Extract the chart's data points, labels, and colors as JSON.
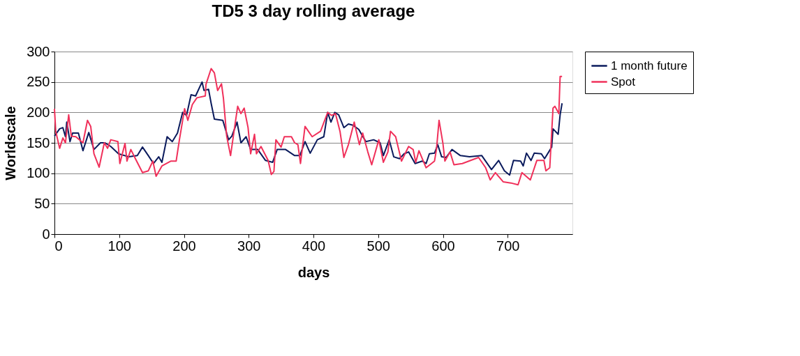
{
  "chart_data": {
    "type": "line",
    "title": "TD5 3 day rolling average",
    "xlabel": "days",
    "ylabel": "Worldscale",
    "xlim": [
      0,
      800
    ],
    "xticks": [
      0,
      100,
      200,
      300,
      400,
      500,
      600,
      700
    ],
    "ylim": [
      0,
      300
    ],
    "yticks": [
      0,
      50,
      100,
      150,
      200,
      250,
      300
    ],
    "grid": "y",
    "legend": "right",
    "marker": "none",
    "line_style": "solid",
    "series": [
      {
        "name": "1 month future",
        "color": "#0a1a5c",
        "x": [
          0,
          8,
          13,
          17,
          19,
          24,
          28,
          37,
          44,
          53,
          61,
          71,
          78,
          87,
          99,
          115,
          128,
          136,
          145,
          153,
          161,
          166,
          174,
          182,
          190,
          198,
          204,
          211,
          218,
          228,
          231,
          238,
          242,
          247,
          260,
          269,
          274,
          282,
          288,
          296,
          303,
          314,
          326,
          337,
          344,
          357,
          371,
          379,
          387,
          395,
          406,
          416,
          422,
          427,
          433,
          439,
          447,
          454,
          461,
          470,
          476,
          481,
          493,
          503,
          508,
          517,
          524,
          533,
          540,
          547,
          557,
          568,
          574,
          579,
          587,
          592,
          598,
          605,
          614,
          627,
          641,
          660,
          675,
          686,
          695,
          703,
          709,
          720,
          724,
          729,
          736,
          741,
          752,
          757,
          768,
          770,
          778,
          781,
          784
        ],
        "values": [
          161,
          173,
          175,
          160,
          184,
          152,
          166,
          166,
          137,
          167,
          139,
          150,
          150,
          144,
          132,
          127,
          129,
          143,
          129,
          116,
          127,
          118,
          160,
          152,
          166,
          200,
          195,
          229,
          227,
          250,
          236,
          238,
          215,
          189,
          187,
          155,
          161,
          184,
          150,
          160,
          139,
          139,
          121,
          118,
          139,
          139,
          129,
          129,
          152,
          133,
          155,
          160,
          200,
          184,
          200,
          196,
          175,
          181,
          179,
          172,
          161,
          152,
          155,
          150,
          129,
          155,
          127,
          124,
          132,
          135,
          116,
          120,
          116,
          132,
          133,
          147,
          127,
          126,
          139,
          129,
          127,
          129,
          106,
          121,
          104,
          97,
          121,
          120,
          112,
          133,
          121,
          133,
          132,
          124,
          143,
          173,
          164,
          196,
          215
        ]
      },
      {
        "name": "Spot",
        "color": "#f0305a",
        "x": [
          0,
          2,
          8,
          13,
          17,
          22,
          26,
          33,
          44,
          51,
          56,
          61,
          69,
          77,
          82,
          87,
          98,
          101,
          109,
          112,
          118,
          125,
          136,
          145,
          152,
          157,
          166,
          180,
          188,
          193,
          201,
          206,
          213,
          220,
          233,
          234,
          242,
          247,
          252,
          258,
          261,
          266,
          272,
          279,
          283,
          288,
          293,
          299,
          303,
          309,
          312,
          319,
          330,
          335,
          339,
          342,
          350,
          355,
          366,
          371,
          376,
          380,
          387,
          398,
          411,
          422,
          428,
          434,
          441,
          447,
          454,
          463,
          471,
          476,
          484,
          490,
          501,
          508,
          515,
          519,
          527,
          536,
          547,
          554,
          558,
          563,
          574,
          587,
          590,
          594,
          600,
          603,
          611,
          617,
          630,
          655,
          666,
          673,
          681,
          693,
          705,
          716,
          722,
          735,
          745,
          756,
          759,
          765,
          770,
          773,
          779,
          781,
          784
        ],
        "values": [
          206,
          169,
          141,
          158,
          150,
          196,
          161,
          160,
          150,
          187,
          177,
          132,
          110,
          150,
          141,
          155,
          152,
          116,
          149,
          120,
          139,
          124,
          101,
          104,
          120,
          95,
          112,
          120,
          120,
          155,
          206,
          187,
          213,
          224,
          227,
          246,
          272,
          265,
          236,
          247,
          223,
          161,
          129,
          181,
          210,
          198,
          207,
          175,
          132,
          164,
          132,
          144,
          121,
          98,
          103,
          155,
          143,
          160,
          160,
          150,
          147,
          116,
          177,
          160,
          169,
          200,
          195,
          198,
          169,
          126,
          147,
          184,
          147,
          166,
          135,
          114,
          155,
          118,
          135,
          169,
          160,
          120,
          144,
          139,
          118,
          137,
          109,
          120,
          139,
          187,
          149,
          120,
          135,
          114,
          116,
          126,
          109,
          89,
          101,
          86,
          84,
          81,
          101,
          89,
          121,
          121,
          104,
          109,
          207,
          210,
          198,
          259,
          259
        ]
      }
    ]
  }
}
